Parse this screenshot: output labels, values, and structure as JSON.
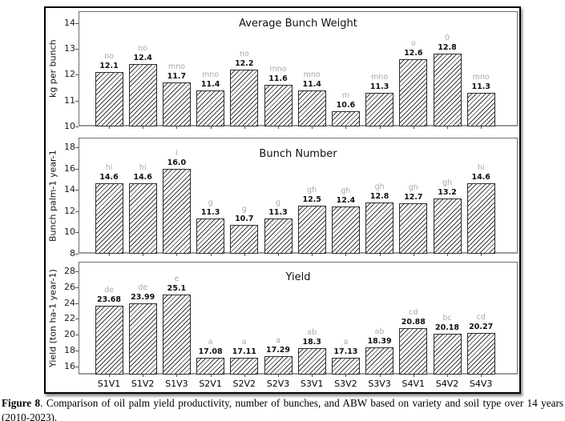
{
  "caption": {
    "label": "Figure 8",
    "text": ". Comparison of oil palm yield productivity, number of bunches, and ABW based on variety and soil type over 14 years (2010-2023)."
  },
  "chart_data": [
    {
      "type": "bar",
      "title": "Average Bunch Weight",
      "xlabel": "",
      "ylabel": "kg per bunch",
      "categories": [
        "S1V1",
        "S1V2",
        "S1V3",
        "S2V1",
        "S2V2",
        "S2V3",
        "S3V1",
        "S3V2",
        "S3V3",
        "S4V1",
        "S4V2",
        "S4V3"
      ],
      "values": [
        12.1,
        12.4,
        11.7,
        11.4,
        12.2,
        11.6,
        11.4,
        10.6,
        11.3,
        12.6,
        12.8,
        11.3
      ],
      "value_labels": [
        "12.1",
        "12.4",
        "11.7",
        "11.4",
        "12.2",
        "11.6",
        "11.4",
        "10.6",
        "11.3",
        "12.6",
        "12.8",
        "11.3"
      ],
      "letters": [
        "no",
        "no",
        "mno",
        "mno",
        "no",
        "mno",
        "mno",
        "m",
        "mno",
        "o",
        "0",
        "mno"
      ],
      "yticks": [
        10,
        11,
        12,
        13,
        14
      ],
      "ylim": [
        10,
        14.45
      ],
      "grid": false,
      "legend": null,
      "hatch": "///"
    },
    {
      "type": "bar",
      "title": "Bunch Number",
      "xlabel": "",
      "ylabel": "Bunch palm-1 year-1",
      "categories": [
        "S1V1",
        "S1V2",
        "S1V3",
        "S2V1",
        "S2V2",
        "S2V3",
        "S3V1",
        "S3V2",
        "S3V3",
        "S4V1",
        "S4V2",
        "S4V3"
      ],
      "values": [
        14.6,
        14.6,
        16.0,
        11.3,
        10.7,
        11.3,
        12.5,
        12.4,
        12.8,
        12.7,
        13.2,
        14.6
      ],
      "value_labels": [
        "14.6",
        "14.6",
        "16.0",
        "11.3",
        "10.7",
        "11.3",
        "12.5",
        "12.4",
        "12.8",
        "12.7",
        "13.2",
        "14.6"
      ],
      "letters": [
        "hi",
        "hi",
        "i",
        "g",
        "g",
        "g",
        "gh",
        "gh",
        "gh",
        "gh",
        "gh",
        "hi"
      ],
      "yticks": [
        8,
        10,
        12,
        14,
        16,
        18
      ],
      "ylim": [
        8,
        18.9
      ],
      "grid": false,
      "legend": null,
      "hatch": "///"
    },
    {
      "type": "bar",
      "title": "Yield",
      "xlabel": "",
      "ylabel": "Yield (ton ha-1 year-1)",
      "categories": [
        "S1V1",
        "S1V2",
        "S1V3",
        "S2V1",
        "S2V2",
        "S2V3",
        "S3V1",
        "S3V2",
        "S3V3",
        "S4V1",
        "S4V2",
        "S4V3"
      ],
      "values": [
        23.68,
        23.99,
        25.1,
        17.08,
        17.11,
        17.29,
        18.3,
        17.13,
        18.39,
        20.88,
        20.18,
        20.27
      ],
      "value_labels": [
        "23.68",
        "23.99",
        "25.1",
        "17.08",
        "17.11",
        "17.29",
        "18.3",
        "17.13",
        "18.39",
        "20.88",
        "20.18",
        "20.27"
      ],
      "letters": [
        "de",
        "de",
        "e",
        "a",
        "a",
        "a",
        "ab",
        "a",
        "ab",
        "cd",
        "bc",
        "cd"
      ],
      "yticks": [
        16,
        18,
        20,
        22,
        24,
        26,
        28
      ],
      "ylim": [
        15.0,
        29.2
      ],
      "grid": false,
      "legend": null,
      "hatch": "///"
    }
  ]
}
